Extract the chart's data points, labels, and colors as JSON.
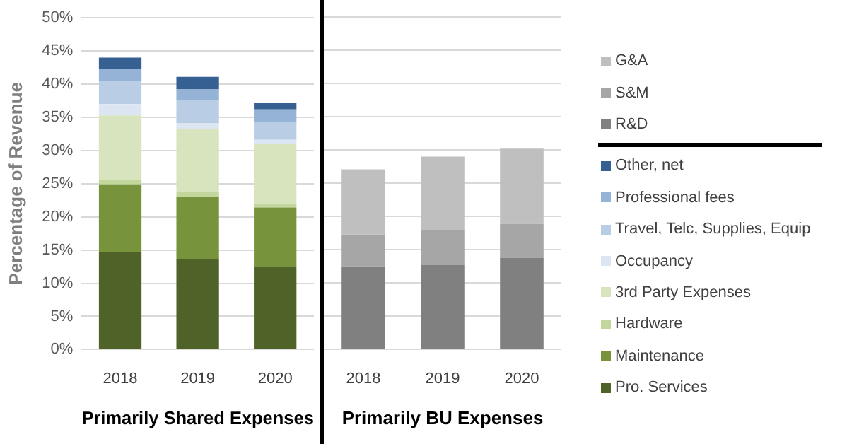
{
  "chart_data": [
    {
      "type": "bar",
      "xlabel": "Primarily Shared Expenses",
      "ylabel": "Percentage of Revenue",
      "categories": [
        "2018",
        "2019",
        "2020"
      ],
      "stacked": true,
      "grid": "y",
      "legend": "right",
      "ylim": [
        0,
        50
      ],
      "yticks": [
        {
          "value": 0,
          "label": "0%"
        },
        {
          "value": 5,
          "label": "5%"
        },
        {
          "value": 10,
          "label": "10%"
        },
        {
          "value": 15,
          "label": "15%"
        },
        {
          "value": 20,
          "label": "20%"
        },
        {
          "value": 25,
          "label": "25%"
        },
        {
          "value": 30,
          "label": "30%"
        },
        {
          "value": 35,
          "label": "35%"
        },
        {
          "value": 40,
          "label": "40%"
        },
        {
          "value": 45,
          "label": "45%"
        },
        {
          "value": 50,
          "label": "50%"
        }
      ],
      "series": [
        {
          "name": "Pro. Services",
          "color": "#4f6228",
          "values": [
            14.7,
            13.6,
            12.5
          ]
        },
        {
          "name": "Maintenance",
          "color": "#77933c",
          "values": [
            10.2,
            9.4,
            8.9
          ]
        },
        {
          "name": "Hardware",
          "color": "#c3d69b",
          "values": [
            0.6,
            0.8,
            0.6
          ]
        },
        {
          "name": "3rd Party Expenses",
          "color": "#d7e4bd",
          "values": [
            9.8,
            9.5,
            9.0
          ]
        },
        {
          "name": "Occupancy",
          "color": "#dce6f2",
          "values": [
            1.7,
            0.8,
            0.6
          ]
        },
        {
          "name": "Travel, Telc, Supplies, Equip",
          "color": "#b9cde5",
          "values": [
            3.5,
            3.5,
            2.7
          ]
        },
        {
          "name": "Professional fees",
          "color": "#95b3d7",
          "values": [
            1.8,
            1.6,
            1.9
          ]
        },
        {
          "name": "Other, net",
          "color": "#366092",
          "values": [
            1.7,
            1.9,
            1.0
          ]
        }
      ]
    },
    {
      "type": "bar",
      "xlabel": "Primarily BU Expenses",
      "categories": [
        "2018",
        "2019",
        "2020"
      ],
      "stacked": true,
      "grid": "y",
      "legend": "right",
      "tick_labels": "x",
      "ylim": [
        0,
        50
      ],
      "yticks": [
        0,
        5,
        10,
        15,
        20,
        25,
        30,
        35,
        40,
        45,
        50
      ],
      "series": [
        {
          "name": "R&D",
          "color": "#808080",
          "values": [
            12.5,
            12.7,
            13.8
          ]
        },
        {
          "name": "S&M",
          "color": "#a6a6a6",
          "values": [
            4.8,
            5.2,
            5.1
          ]
        },
        {
          "name": "G&A",
          "color": "#bfbfbf",
          "values": [
            9.8,
            11.1,
            11.3
          ]
        }
      ]
    }
  ]
}
